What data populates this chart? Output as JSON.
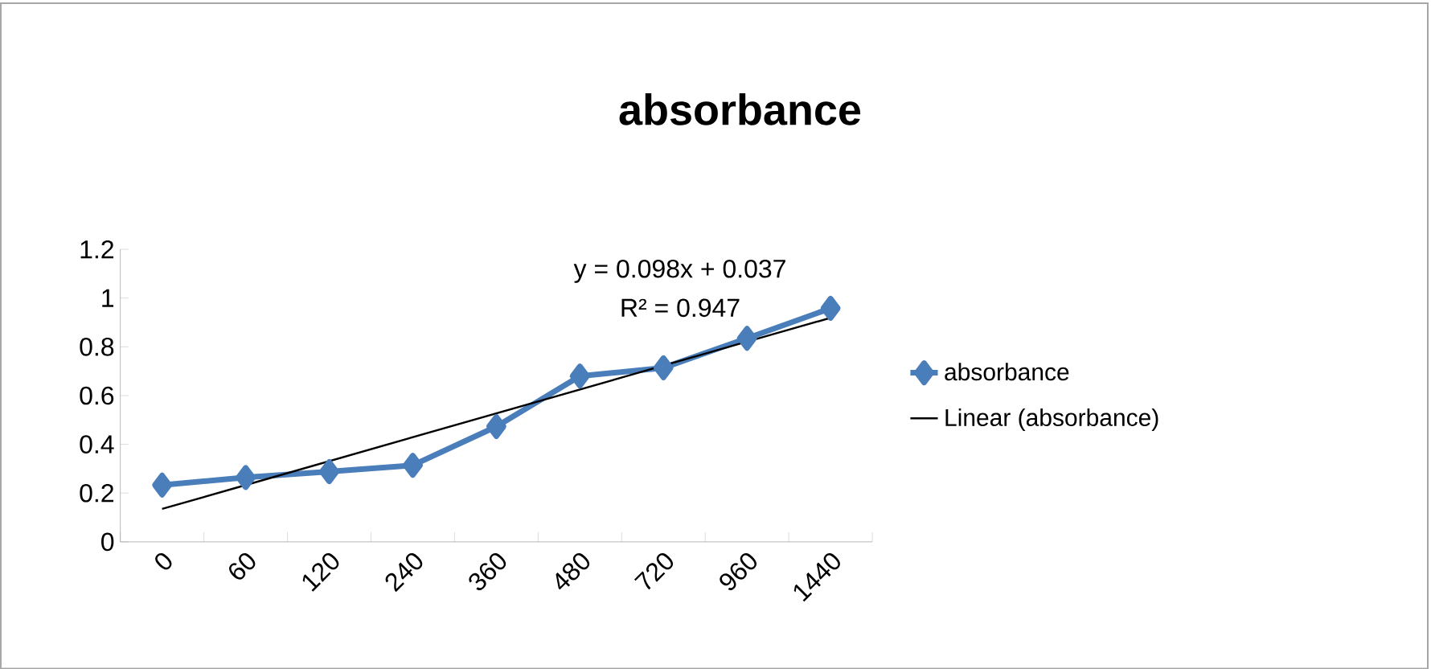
{
  "chart_data": {
    "type": "line",
    "title": "absorbance",
    "categories": [
      "0",
      "60",
      "120",
      "240",
      "360",
      "480",
      "720",
      "960",
      "1440"
    ],
    "series": [
      {
        "name": "absorbance",
        "color": "#4a7ebb",
        "marker": "diamond",
        "values": [
          0.233,
          0.264,
          0.288,
          0.314,
          0.473,
          0.68,
          0.714,
          0.835,
          0.958
        ]
      },
      {
        "name": "Linear (absorbance)",
        "color": "#000000",
        "marker": "none",
        "values": [
          0.135,
          0.233,
          0.331,
          0.429,
          0.527,
          0.625,
          0.723,
          0.821,
          0.919
        ]
      }
    ],
    "ylim": [
      0,
      1.2
    ],
    "yticks": [
      0,
      0.2,
      0.4,
      0.6,
      0.8,
      1,
      1.2
    ],
    "annotations": [
      "y = 0.098x + 0.037",
      "R² = 0.947"
    ],
    "legend": "right",
    "grid": false
  }
}
